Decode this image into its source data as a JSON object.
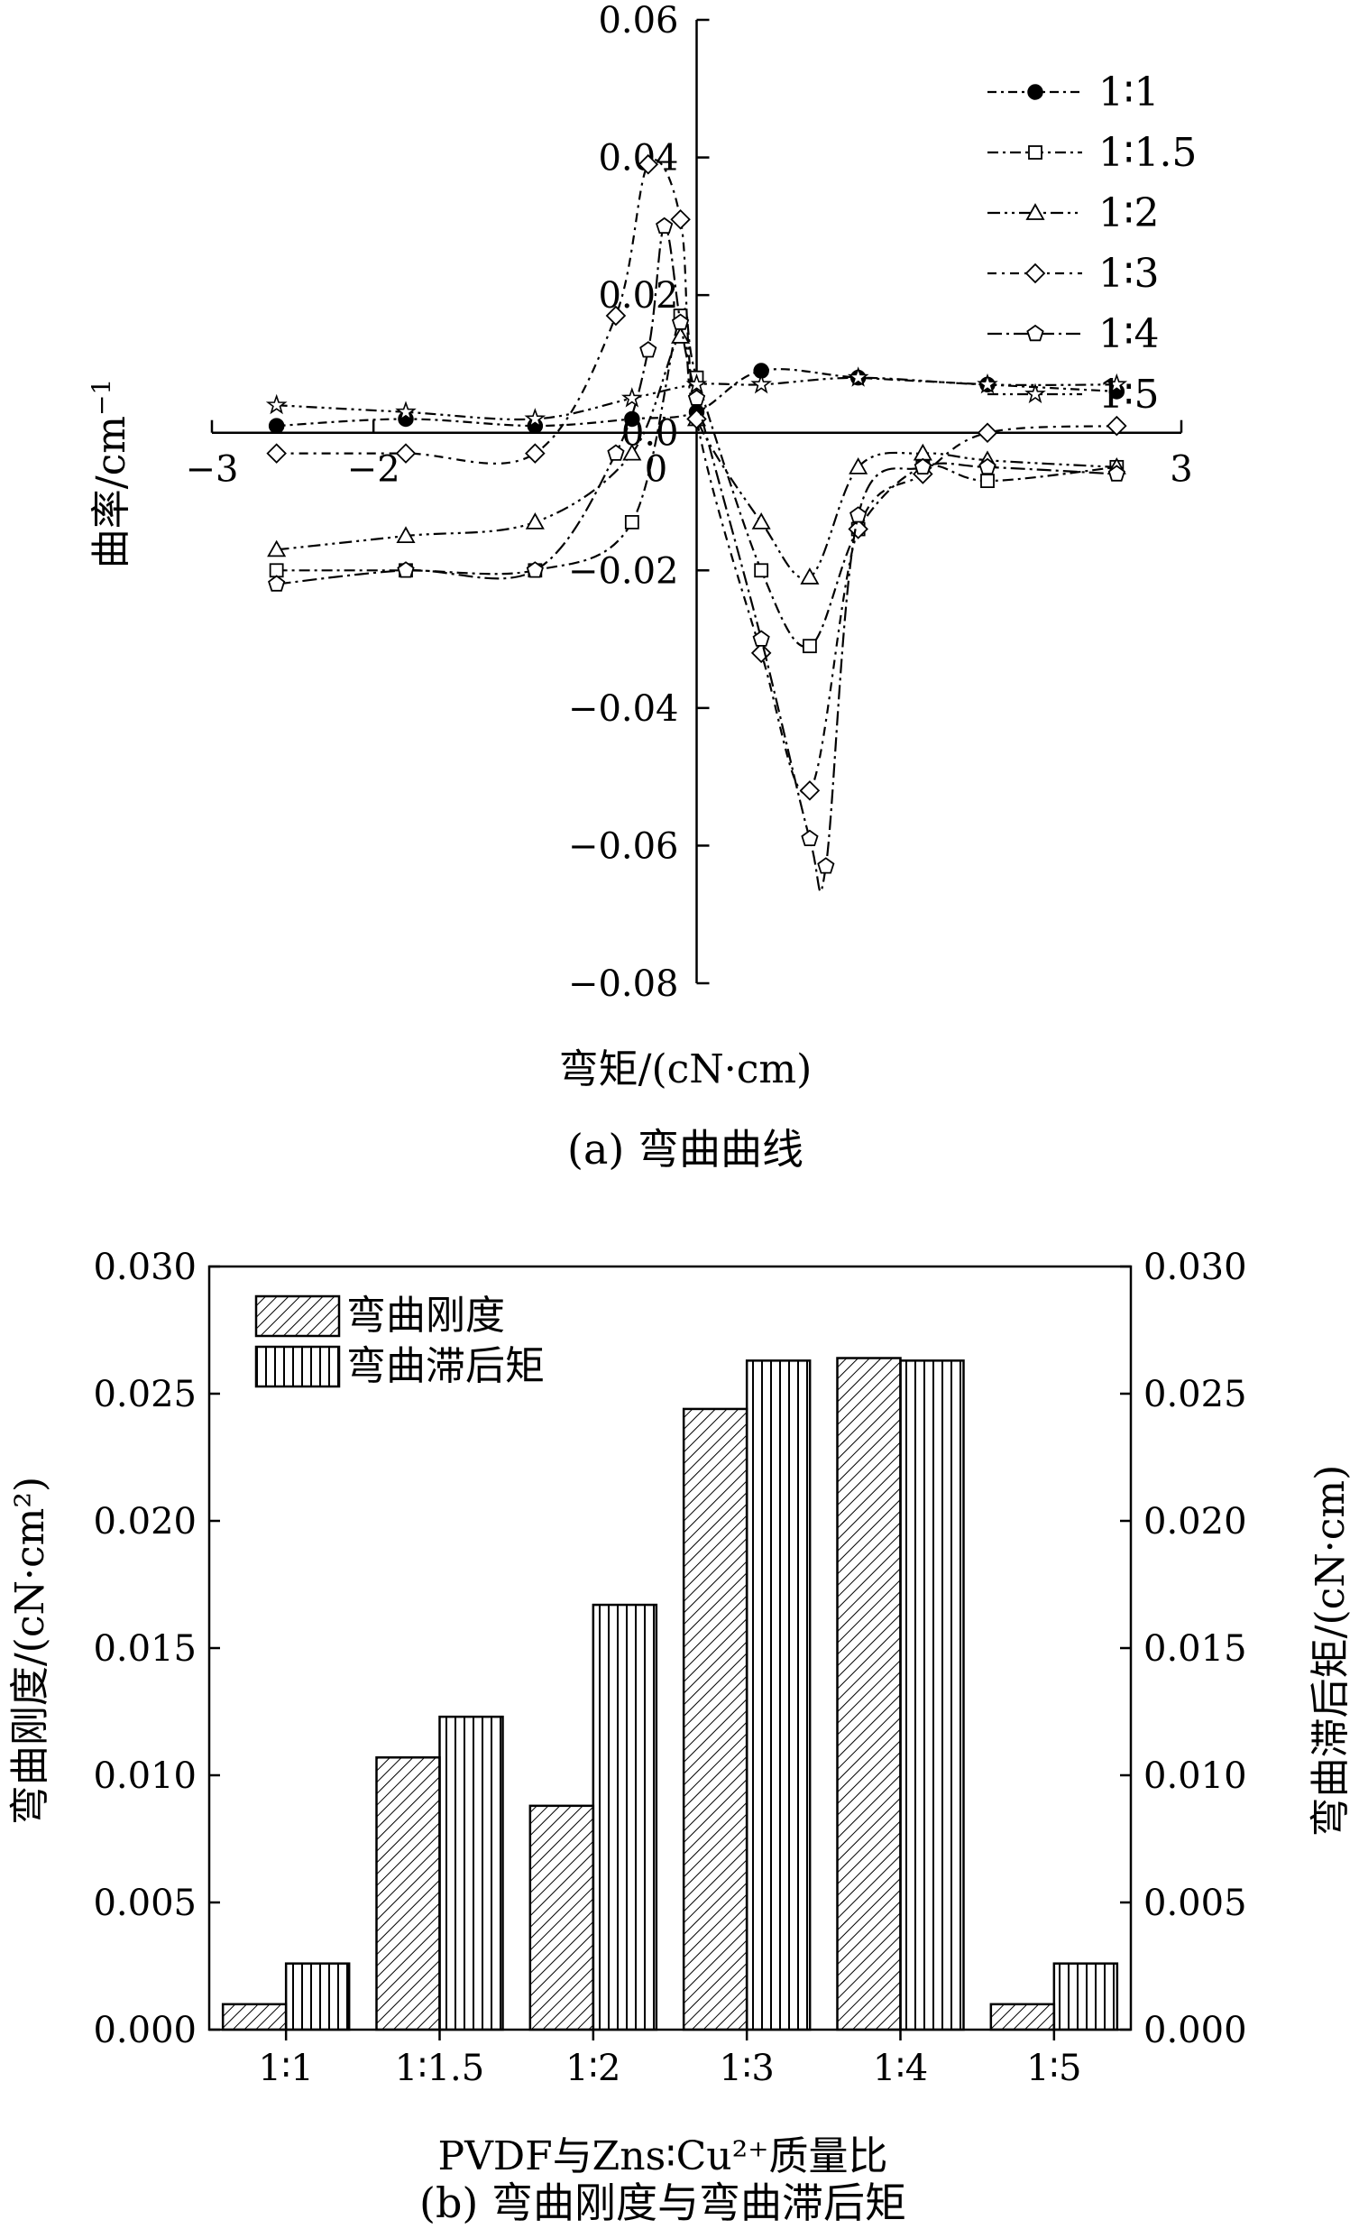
{
  "chart_data": [
    {
      "type": "line",
      "caption": "(a) 弯曲曲线",
      "xlabel": "弯矩/(cN·cm)",
      "ylabel": "曲率/cm",
      "ylabel_sup": "−1",
      "xlim": [
        -3,
        3
      ],
      "ylim": [
        -0.08,
        0.06
      ],
      "xticks": [
        -3,
        -2,
        0,
        3
      ],
      "xtick_labels": [
        "−3",
        "−2",
        "0",
        "3"
      ],
      "yticks": [
        0.06,
        0.04,
        0.02,
        0.0,
        -0.02,
        -0.04,
        -0.06,
        -0.08
      ],
      "ytick_labels": [
        "0.06",
        "0.04",
        "0.02",
        "0.0",
        "−0.02",
        "−0.04",
        "−0.06",
        "−0.08"
      ],
      "legend_position": "top-right",
      "series": [
        {
          "name": "1∶1",
          "marker": "filled-circle",
          "x": [
            -2.6,
            -1.8,
            -1.0,
            -0.4,
            0.0,
            0.4,
            1.0,
            1.8,
            2.6
          ],
          "y": [
            0.001,
            0.002,
            0.001,
            0.002,
            0.003,
            0.009,
            0.008,
            0.007,
            0.006
          ]
        },
        {
          "name": "1∶1.5",
          "marker": "open-square",
          "x": [
            -2.6,
            -1.8,
            -1.0,
            -0.4,
            -0.1,
            0.0,
            0.4,
            0.7,
            1.0,
            1.4,
            1.8,
            2.6
          ],
          "y": [
            -0.02,
            -0.02,
            -0.02,
            -0.013,
            0.017,
            0.008,
            -0.02,
            -0.031,
            -0.014,
            -0.005,
            -0.007,
            -0.005
          ]
        },
        {
          "name": "1∶2",
          "marker": "open-triangle",
          "x": [
            -2.6,
            -1.8,
            -1.0,
            -0.4,
            -0.1,
            0.0,
            0.4,
            0.7,
            1.0,
            1.4,
            1.8,
            2.6
          ],
          "y": [
            -0.017,
            -0.015,
            -0.013,
            -0.003,
            0.014,
            0.002,
            -0.013,
            -0.021,
            -0.005,
            -0.003,
            -0.004,
            -0.005
          ]
        },
        {
          "name": "1∶3",
          "marker": "open-diamond",
          "x": [
            -2.6,
            -1.8,
            -1.0,
            -0.5,
            -0.3,
            -0.1,
            0.0,
            0.4,
            0.7,
            1.0,
            1.4,
            1.8,
            2.6
          ],
          "y": [
            -0.003,
            -0.003,
            -0.003,
            0.017,
            0.039,
            0.031,
            0.002,
            -0.032,
            -0.052,
            -0.014,
            -0.006,
            0.0,
            0.001
          ]
        },
        {
          "name": "1∶4",
          "marker": "open-pentagon",
          "x": [
            -2.6,
            -1.8,
            -1.0,
            -0.5,
            -0.3,
            -0.2,
            -0.1,
            0.0,
            0.4,
            0.7,
            0.8,
            1.0,
            1.4,
            1.8,
            2.6
          ],
          "y": [
            -0.022,
            -0.02,
            -0.02,
            -0.003,
            0.012,
            0.03,
            0.016,
            0.005,
            -0.03,
            -0.059,
            -0.063,
            -0.012,
            -0.005,
            -0.005,
            -0.006
          ]
        },
        {
          "name": "1∶5",
          "marker": "open-star",
          "x": [
            -2.6,
            -1.8,
            -1.0,
            -0.4,
            0.0,
            0.4,
            1.0,
            1.8,
            2.6
          ],
          "y": [
            0.004,
            0.003,
            0.002,
            0.005,
            0.007,
            0.007,
            0.008,
            0.007,
            0.007
          ]
        }
      ]
    },
    {
      "type": "bar",
      "caption": "(b) 弯曲刚度与弯曲滞后矩",
      "xlabel": "PVDF与Zns∶Cu²⁺质量比",
      "ylabel_left": "弯曲刚度/(cN·cm²)",
      "ylabel_right": "弯曲滞后矩/(cN·cm)",
      "ylim": [
        0,
        0.03
      ],
      "yticks": [
        0.0,
        0.005,
        0.01,
        0.015,
        0.02,
        0.025,
        0.03
      ],
      "ytick_labels": [
        "0.000",
        "0.005",
        "0.010",
        "0.015",
        "0.020",
        "0.025",
        "0.030"
      ],
      "categories": [
        "1∶1",
        "1∶1.5",
        "1∶2",
        "1∶3",
        "1∶4",
        "1∶5"
      ],
      "legend_position": "top-left",
      "series": [
        {
          "name": "弯曲刚度",
          "axis": "left",
          "pattern": "diagonal-hatch",
          "values": [
            0.001,
            0.0107,
            0.0088,
            0.0244,
            0.0264,
            0.001
          ]
        },
        {
          "name": "弯曲滞后矩",
          "axis": "right",
          "pattern": "vertical-hatch",
          "values": [
            0.0026,
            0.0123,
            0.0167,
            0.0263,
            0.0263,
            0.0026
          ]
        }
      ]
    }
  ]
}
